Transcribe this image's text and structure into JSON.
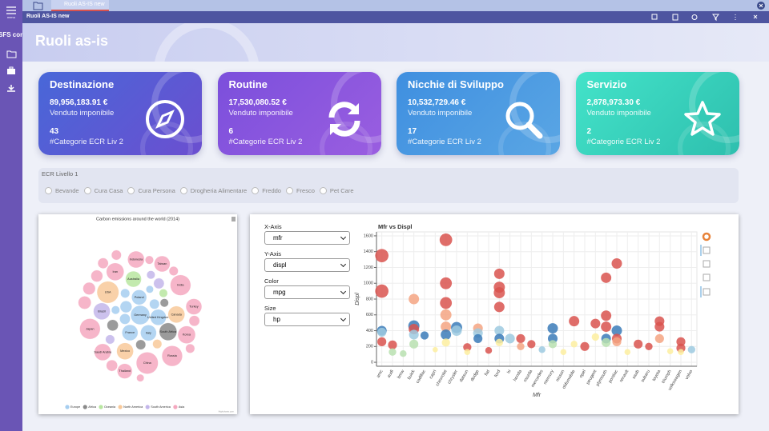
{
  "app": {
    "logo": "SFS con",
    "menu_label": "menu",
    "tab": "Ruoli AS-IS new",
    "window_title": "Ruoli AS-IS new",
    "page_title": "Ruoli as-is"
  },
  "cards": [
    {
      "title": "Destinazione",
      "amount": "89,956,183.91 €",
      "amount_label": "Venduto imponibile",
      "count": "43",
      "count_label": "#Categorie ECR Liv 2"
    },
    {
      "title": "Routine",
      "amount": "17,530,080.52 €",
      "amount_label": "Venduto imponibile",
      "count": "6",
      "count_label": "#Categorie ECR Liv 2"
    },
    {
      "title": "Nicchie di Sviluppo",
      "amount": "10,532,729.46 €",
      "amount_label": "Venduto imponibile",
      "count": "17",
      "count_label": "#Categorie ECR Liv 2"
    },
    {
      "title": "Servizio",
      "amount": "2,878,973.30 €",
      "amount_label": "Venduto imponibile",
      "count": "2",
      "count_label": "#Categorie ECR Liv 2"
    }
  ],
  "filter": {
    "title": "ECR Livello 1",
    "options": [
      "Bevande",
      "Cura Casa",
      "Cura Persona",
      "Drogheria Alimentare",
      "Freddo",
      "Fresco",
      "Pet Care"
    ]
  },
  "bubble_chart": {
    "type": "packedbubble",
    "title": "Carbon emissions around the world (2014)",
    "credit": "Highcharts.com",
    "series": [
      {
        "name": "Europe",
        "color": "#a6cef0",
        "items": [
          {
            "name": "Germany",
            "value": 130
          },
          {
            "name": "United Kingdom",
            "value": 90
          },
          {
            "name": "Italy",
            "value": 90
          },
          {
            "name": "France",
            "value": 90
          },
          {
            "name": "Poland",
            "value": 80
          },
          {
            "name": null,
            "value": 50
          },
          {
            "name": null,
            "value": 40
          },
          {
            "name": null,
            "value": 35
          },
          {
            "name": null,
            "value": 30
          },
          {
            "name": null,
            "value": 25
          },
          {
            "name": null,
            "value": 20
          }
        ]
      },
      {
        "name": "Africa",
        "color": "#8a8a8a",
        "items": [
          {
            "name": "South Africa",
            "value": 110
          },
          {
            "name": null,
            "value": 45
          },
          {
            "name": null,
            "value": 35
          },
          {
            "name": null,
            "value": 25
          }
        ]
      },
      {
        "name": "Oceania",
        "color": "#b8e6a0",
        "items": [
          {
            "name": "Australia",
            "value": 90
          },
          {
            "name": null,
            "value": 25
          }
        ]
      },
      {
        "name": "North America",
        "color": "#f8c99a",
        "items": [
          {
            "name": "USA",
            "value": 170
          },
          {
            "name": "Canada",
            "value": 100
          },
          {
            "name": "Mexico",
            "value": 100
          },
          {
            "name": null,
            "value": 30
          }
        ]
      },
      {
        "name": "South America",
        "color": "#c3b6ea",
        "items": [
          {
            "name": "Brazil",
            "value": 100
          },
          {
            "name": null,
            "value": 40
          },
          {
            "name": null,
            "value": 30
          },
          {
            "name": null,
            "value": 25
          }
        ]
      },
      {
        "name": "Asia",
        "color": "#f4a8bf",
        "items": [
          {
            "name": "China",
            "value": 170
          },
          {
            "name": "India",
            "value": 150
          },
          {
            "name": "Russia",
            "value": 150
          },
          {
            "name": "Japan",
            "value": 150
          },
          {
            "name": "Iran",
            "value": 110
          },
          {
            "name": "Korea",
            "value": 110
          },
          {
            "name": "Saudi Arabia",
            "value": 100
          },
          {
            "name": "Indonesia",
            "value": 100
          },
          {
            "name": "Taiwan",
            "value": 90
          },
          {
            "name": "Turkey",
            "value": 90
          },
          {
            "name": "Thailand",
            "value": 80
          },
          {
            "name": null,
            "value": 60
          },
          {
            "name": null,
            "value": 55
          },
          {
            "name": null,
            "value": 50
          },
          {
            "name": null,
            "value": 45
          },
          {
            "name": null,
            "value": 40
          },
          {
            "name": null,
            "value": 40
          },
          {
            "name": null,
            "value": 35
          },
          {
            "name": null,
            "value": 30
          },
          {
            "name": null,
            "value": 30
          },
          {
            "name": null,
            "value": 25
          },
          {
            "name": null,
            "value": 20
          }
        ]
      }
    ]
  },
  "controls": [
    {
      "label": "X-Axis",
      "value": "mfr"
    },
    {
      "label": "Y-Axis",
      "value": "displ"
    },
    {
      "label": "Color",
      "value": "mpg"
    },
    {
      "label": "Size",
      "value": "hp"
    }
  ],
  "scatter_chart": {
    "type": "scatter",
    "title": "Mfr vs Displ",
    "x_label": "Mfr",
    "y_label": "Displ",
    "ylim": [
      -50,
      1650
    ],
    "yticks": [
      0,
      200,
      400,
      600,
      800,
      1000,
      1200,
      1400,
      1600
    ],
    "grid": true,
    "categories": [
      "amc",
      "audi",
      "bmw",
      "buick",
      "cadillac",
      "capri",
      "chevrolet",
      "chrysler",
      "datsun",
      "dodge",
      "fiat",
      "ford",
      "hi",
      "honda",
      "mazda",
      "mercedes",
      "mercury",
      "nissan",
      "oldsmobile",
      "opel",
      "peugeot",
      "plymouth",
      "pontiac",
      "renault",
      "saab",
      "subaru",
      "toyota",
      "triumph",
      "volkswagen",
      "volvo"
    ],
    "points": [
      {
        "x": "amc",
        "y": 1350,
        "size": 150,
        "color": "#d9534f"
      },
      {
        "x": "amc",
        "y": 900,
        "size": 150,
        "color": "#d9534f"
      },
      {
        "x": "amc",
        "y": 400,
        "size": 100,
        "color": "#3b7bb9"
      },
      {
        "x": "amc",
        "y": 380,
        "size": 90,
        "color": "#9ecae1"
      },
      {
        "x": "amc",
        "y": 260,
        "size": 90,
        "color": "#d9534f"
      },
      {
        "x": "audi",
        "y": 220,
        "size": 90,
        "color": "#d9534f"
      },
      {
        "x": "audi",
        "y": 130,
        "size": 70,
        "color": "#b8e0b0"
      },
      {
        "x": "bmw",
        "y": 110,
        "size": 60,
        "color": "#b8e0b0"
      },
      {
        "x": "buick",
        "y": 800,
        "size": 110,
        "color": "#f4a582"
      },
      {
        "x": "buick",
        "y": 460,
        "size": 120,
        "color": "#3b7bb9"
      },
      {
        "x": "buick",
        "y": 420,
        "size": 110,
        "color": "#d9534f"
      },
      {
        "x": "buick",
        "y": 350,
        "size": 100,
        "color": "#9ecae1"
      },
      {
        "x": "buick",
        "y": 230,
        "size": 90,
        "color": "#b8e0b0"
      },
      {
        "x": "cadillac",
        "y": 340,
        "size": 80,
        "color": "#3b7bb9"
      },
      {
        "x": "capri",
        "y": 160,
        "size": 40,
        "color": "#fdeea0"
      },
      {
        "x": "chevrolet",
        "y": 1550,
        "size": 140,
        "color": "#d9534f"
      },
      {
        "x": "chevrolet",
        "y": 1000,
        "size": 130,
        "color": "#d9534f"
      },
      {
        "x": "chevrolet",
        "y": 750,
        "size": 130,
        "color": "#d9534f"
      },
      {
        "x": "chevrolet",
        "y": 600,
        "size": 120,
        "color": "#f4a582"
      },
      {
        "x": "chevrolet",
        "y": 450,
        "size": 110,
        "color": "#f4a582"
      },
      {
        "x": "chevrolet",
        "y": 350,
        "size": 110,
        "color": "#3b7bb9"
      },
      {
        "x": "chevrolet",
        "y": 250,
        "size": 80,
        "color": "#fdeea0"
      },
      {
        "x": "chrysler",
        "y": 440,
        "size": 120,
        "color": "#3b7bb9"
      },
      {
        "x": "chrysler",
        "y": 400,
        "size": 110,
        "color": "#9ecae1"
      },
      {
        "x": "datsun",
        "y": 190,
        "size": 80,
        "color": "#d9534f"
      },
      {
        "x": "datsun",
        "y": 130,
        "size": 50,
        "color": "#fdeea0"
      },
      {
        "x": "dodge",
        "y": 430,
        "size": 100,
        "color": "#f4a582"
      },
      {
        "x": "dodge",
        "y": 370,
        "size": 100,
        "color": "#9ecae1"
      },
      {
        "x": "dodge",
        "y": 300,
        "size": 90,
        "color": "#3b7bb9"
      },
      {
        "x": "fiat",
        "y": 150,
        "size": 60,
        "color": "#d9534f"
      },
      {
        "x": "ford",
        "y": 1120,
        "size": 110,
        "color": "#d9534f"
      },
      {
        "x": "ford",
        "y": 950,
        "size": 120,
        "color": "#d9534f"
      },
      {
        "x": "ford",
        "y": 880,
        "size": 120,
        "color": "#d9534f"
      },
      {
        "x": "ford",
        "y": 700,
        "size": 110,
        "color": "#d9534f"
      },
      {
        "x": "ford",
        "y": 400,
        "size": 100,
        "color": "#9ecae1"
      },
      {
        "x": "ford",
        "y": 300,
        "size": 100,
        "color": "#3b7bb9"
      },
      {
        "x": "ford",
        "y": 250,
        "size": 70,
        "color": "#fdeea0"
      },
      {
        "x": "hi",
        "y": 300,
        "size": 100,
        "color": "#9ecae1"
      },
      {
        "x": "honda",
        "y": 300,
        "size": 90,
        "color": "#d9534f"
      },
      {
        "x": "honda",
        "y": 200,
        "size": 70,
        "color": "#f4a582"
      },
      {
        "x": "mazda",
        "y": 230,
        "size": 80,
        "color": "#d9534f"
      },
      {
        "x": "mercedes",
        "y": 160,
        "size": 60,
        "color": "#9ecae1"
      },
      {
        "x": "mercury",
        "y": 430,
        "size": 110,
        "color": "#3b7bb9"
      },
      {
        "x": "mercury",
        "y": 300,
        "size": 100,
        "color": "#3b7bb9"
      },
      {
        "x": "mercury",
        "y": 230,
        "size": 80,
        "color": "#b8e0b0"
      },
      {
        "x": "nissan",
        "y": 130,
        "size": 50,
        "color": "#fdeea0"
      },
      {
        "x": "oldsmobile",
        "y": 520,
        "size": 110,
        "color": "#d9534f"
      },
      {
        "x": "oldsmobile",
        "y": 230,
        "size": 60,
        "color": "#fdeea0"
      },
      {
        "x": "opel",
        "y": 200,
        "size": 90,
        "color": "#d9534f"
      },
      {
        "x": "peugeot",
        "y": 490,
        "size": 100,
        "color": "#d9534f"
      },
      {
        "x": "peugeot",
        "y": 320,
        "size": 70,
        "color": "#fdeea0"
      },
      {
        "x": "plymouth",
        "y": 1070,
        "size": 110,
        "color": "#d9534f"
      },
      {
        "x": "plymouth",
        "y": 590,
        "size": 110,
        "color": "#d9534f"
      },
      {
        "x": "plymouth",
        "y": 450,
        "size": 110,
        "color": "#d9534f"
      },
      {
        "x": "plymouth",
        "y": 300,
        "size": 100,
        "color": "#3b7bb9"
      },
      {
        "x": "plymouth",
        "y": 250,
        "size": 90,
        "color": "#b8e0b0"
      },
      {
        "x": "pontiac",
        "y": 1250,
        "size": 110,
        "color": "#d9534f"
      },
      {
        "x": "pontiac",
        "y": 400,
        "size": 110,
        "color": "#3b7bb9"
      },
      {
        "x": "pontiac",
        "y": 300,
        "size": 100,
        "color": "#d9534f"
      },
      {
        "x": "pontiac",
        "y": 260,
        "size": 90,
        "color": "#f4a582"
      },
      {
        "x": "renault",
        "y": 130,
        "size": 50,
        "color": "#fdeea0"
      },
      {
        "x": "saab",
        "y": 230,
        "size": 90,
        "color": "#d9534f"
      },
      {
        "x": "subaru",
        "y": 200,
        "size": 70,
        "color": "#d9534f"
      },
      {
        "x": "toyota",
        "y": 520,
        "size": 100,
        "color": "#d9534f"
      },
      {
        "x": "toyota",
        "y": 450,
        "size": 100,
        "color": "#d9534f"
      },
      {
        "x": "toyota",
        "y": 300,
        "size": 90,
        "color": "#f4a582"
      },
      {
        "x": "triumph",
        "y": 140,
        "size": 50,
        "color": "#fdeea0"
      },
      {
        "x": "volkswagen",
        "y": 260,
        "size": 90,
        "color": "#d9534f"
      },
      {
        "x": "volkswagen",
        "y": 180,
        "size": 90,
        "color": "#d9534f"
      },
      {
        "x": "volkswagen",
        "y": 130,
        "size": 50,
        "color": "#fdeea0"
      },
      {
        "x": "volvo",
        "y": 160,
        "size": 70,
        "color": "#9ecae1"
      }
    ]
  }
}
